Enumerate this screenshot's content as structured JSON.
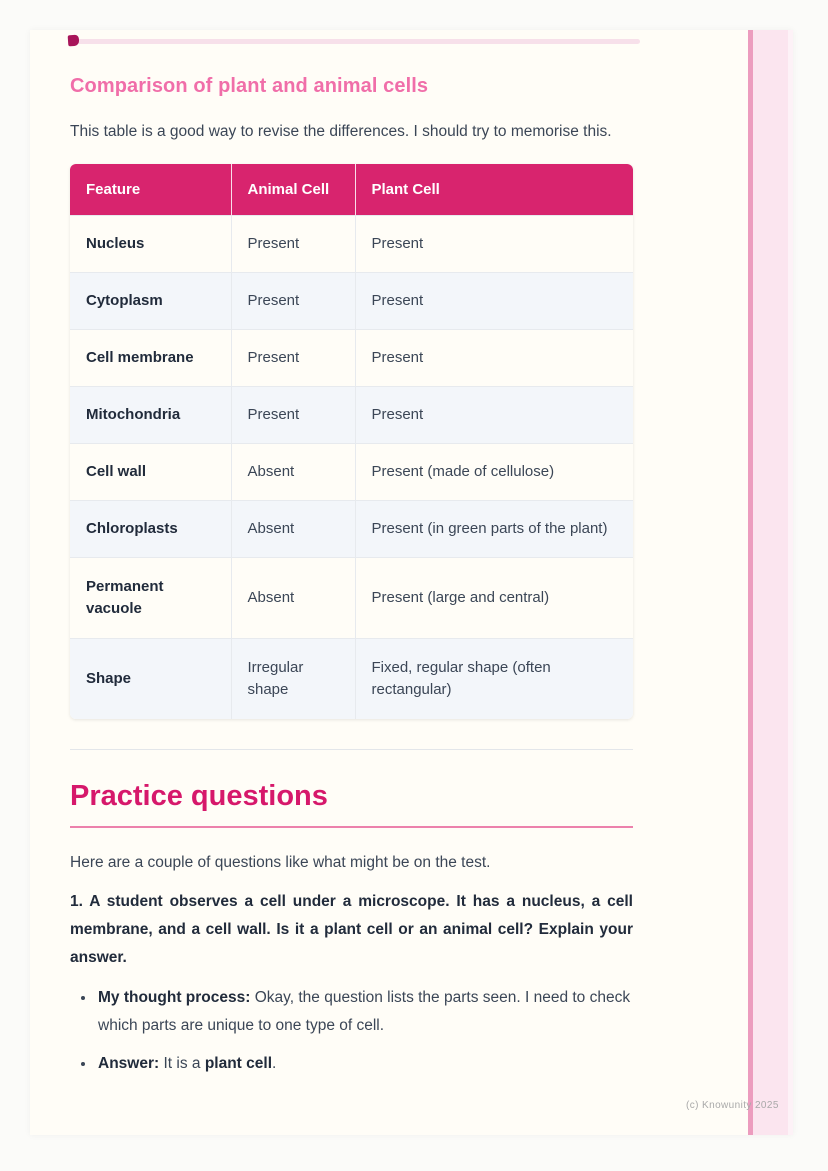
{
  "colors": {
    "table_header_pink": "#D8246E",
    "section_heading_pink": "#F06EA9",
    "main_heading_pink": "#D6186B",
    "heading_underline_pink": "#EC81AC",
    "stripe_line_pink": "#EC9CBE",
    "stripe_fill_pink": "#FBE5EF",
    "page_background": "#FFFDF7",
    "alt_row_gray": "#F3F6FA"
  },
  "section_comparison": {
    "heading": "Comparison of plant and animal cells",
    "intro": "This table is a good way to revise the differences. I should try to memorise this.",
    "table": {
      "headers": [
        "Feature",
        "Animal Cell",
        "Plant Cell"
      ],
      "rows": [
        [
          "Nucleus",
          "Present",
          "Present"
        ],
        [
          "Cytoplasm",
          "Present",
          "Present"
        ],
        [
          "Cell membrane",
          "Present",
          "Present"
        ],
        [
          "Mitochondria",
          "Present",
          "Present"
        ],
        [
          "Cell wall",
          "Absent",
          "Present (made of cellulose)"
        ],
        [
          "Chloroplasts",
          "Absent",
          "Present (in green parts of the plant)"
        ],
        [
          "Permanent vacuole",
          "Absent",
          "Present (large and central)"
        ],
        [
          "Shape",
          "Irregular shape",
          "Fixed, regular shape (often rectangular)"
        ]
      ]
    }
  },
  "section_practice": {
    "heading": "Practice questions",
    "intro": "Here are a couple of questions like what might be on the test.",
    "question_1": "1. A student observes a cell under a microscope. It has a nucleus, a cell membrane, and a cell wall. Is it a plant cell or an animal cell? Explain your answer.",
    "bullets": [
      {
        "segments": [
          {
            "text": "My thought process:",
            "bold": true
          },
          {
            "text": " Okay, the question lists the parts seen. I need to check which parts are unique to one type of cell.",
            "bold": false
          }
        ]
      },
      {
        "segments": [
          {
            "text": "Answer:",
            "bold": true
          },
          {
            "text": " It is a ",
            "bold": false
          },
          {
            "text": "plant cell",
            "bold": true
          },
          {
            "text": ".",
            "bold": false
          }
        ]
      }
    ]
  },
  "footer": {
    "watermark": "(c) Knowunity 2025"
  }
}
